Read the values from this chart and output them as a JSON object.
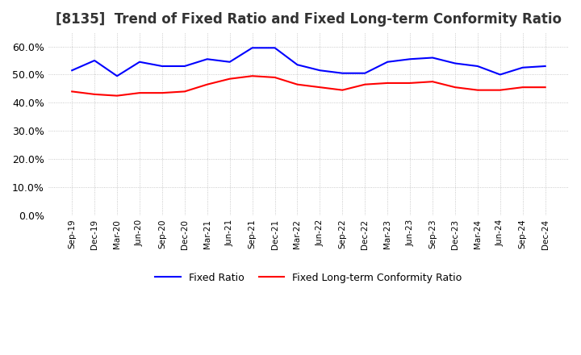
{
  "title": "[8135]  Trend of Fixed Ratio and Fixed Long-term Conformity Ratio",
  "x_labels": [
    "Sep-19",
    "Dec-19",
    "Mar-20",
    "Jun-20",
    "Sep-20",
    "Dec-20",
    "Mar-21",
    "Jun-21",
    "Sep-21",
    "Dec-21",
    "Mar-22",
    "Jun-22",
    "Sep-22",
    "Dec-22",
    "Mar-23",
    "Jun-23",
    "Sep-23",
    "Dec-23",
    "Mar-24",
    "Jun-24",
    "Sep-24",
    "Dec-24"
  ],
  "fixed_ratio": [
    51.5,
    55.0,
    49.5,
    54.5,
    53.0,
    53.0,
    55.5,
    54.5,
    59.5,
    59.5,
    53.5,
    51.5,
    50.5,
    50.5,
    54.5,
    55.5,
    56.0,
    54.0,
    53.0,
    50.0,
    52.5,
    53.0
  ],
  "fixed_lt_ratio": [
    44.0,
    43.0,
    42.5,
    43.5,
    43.5,
    44.0,
    46.5,
    48.5,
    49.5,
    49.0,
    46.5,
    45.5,
    44.5,
    46.5,
    47.0,
    47.0,
    47.5,
    45.5,
    44.5,
    44.5,
    45.5,
    45.5
  ],
  "fixed_ratio_color": "#0000ff",
  "fixed_lt_ratio_color": "#ff0000",
  "ylim": [
    0,
    65
  ],
  "yticks": [
    0,
    10,
    20,
    30,
    40,
    50,
    60
  ],
  "background_color": "#ffffff",
  "grid_color": "#bbbbbb",
  "title_fontsize": 12,
  "legend_labels": [
    "Fixed Ratio",
    "Fixed Long-term Conformity Ratio"
  ]
}
